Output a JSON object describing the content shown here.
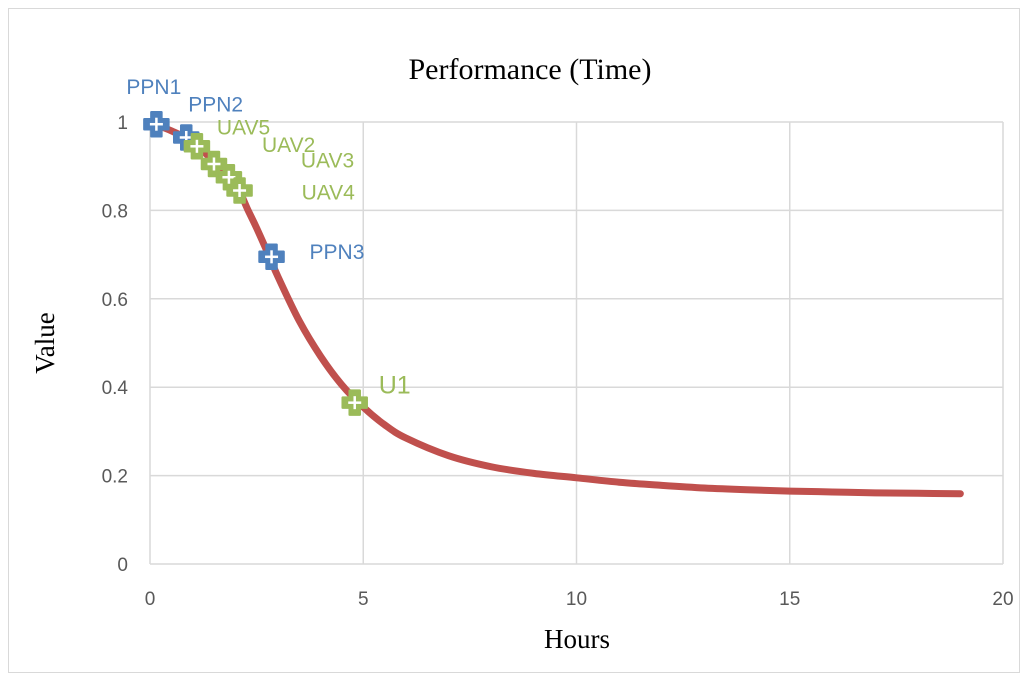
{
  "chart_data": {
    "type": "line",
    "title": "Performance (Time)",
    "xlabel": "Hours",
    "ylabel": "Value",
    "xlim": [
      0,
      20
    ],
    "ylim": [
      0,
      1
    ],
    "x_ticks": [
      "0",
      "5",
      "10",
      "15",
      "20"
    ],
    "y_ticks": [
      "0",
      "0.2",
      "0.4",
      "0.6",
      "0.8",
      "1"
    ],
    "grid": true,
    "legend": "none",
    "curve": {
      "color": "#c0504d",
      "x": [
        0.1,
        0.5,
        1,
        1.5,
        2,
        2.3,
        2.5,
        2.8,
        3,
        3.5,
        4,
        4.5,
        5,
        5.5,
        6,
        7,
        8,
        9,
        10,
        11,
        12,
        13,
        14,
        15,
        16,
        17,
        18,
        19
      ],
      "y": [
        0.995,
        0.98,
        0.955,
        0.91,
        0.86,
        0.8,
        0.76,
        0.695,
        0.65,
        0.55,
        0.47,
        0.405,
        0.355,
        0.315,
        0.285,
        0.245,
        0.22,
        0.205,
        0.195,
        0.185,
        0.178,
        0.172,
        0.168,
        0.165,
        0.163,
        0.161,
        0.16,
        0.159
      ]
    },
    "points": [
      {
        "label": "PPN1",
        "x": 0.15,
        "y": 0.995,
        "group": "PPN"
      },
      {
        "label": "PPN2",
        "x": 0.85,
        "y": 0.965,
        "group": "PPN"
      },
      {
        "label": "UAV5",
        "x": 1.1,
        "y": 0.945,
        "group": "UAV"
      },
      {
        "label": "UAV2",
        "x": 1.5,
        "y": 0.905,
        "group": "UAV"
      },
      {
        "label": "UAV3",
        "x": 1.85,
        "y": 0.875,
        "group": "UAV"
      },
      {
        "label": "UAV4",
        "x": 2.1,
        "y": 0.845,
        "group": "UAV"
      },
      {
        "label": "PPN3",
        "x": 2.85,
        "y": 0.695,
        "group": "PPN"
      },
      {
        "label": "U1",
        "x": 4.8,
        "y": 0.365,
        "group": "UAV"
      }
    ],
    "colors": {
      "PPN": "#4f81bd",
      "UAV": "#9bbb59",
      "gridline": "#d9d9d9"
    }
  }
}
